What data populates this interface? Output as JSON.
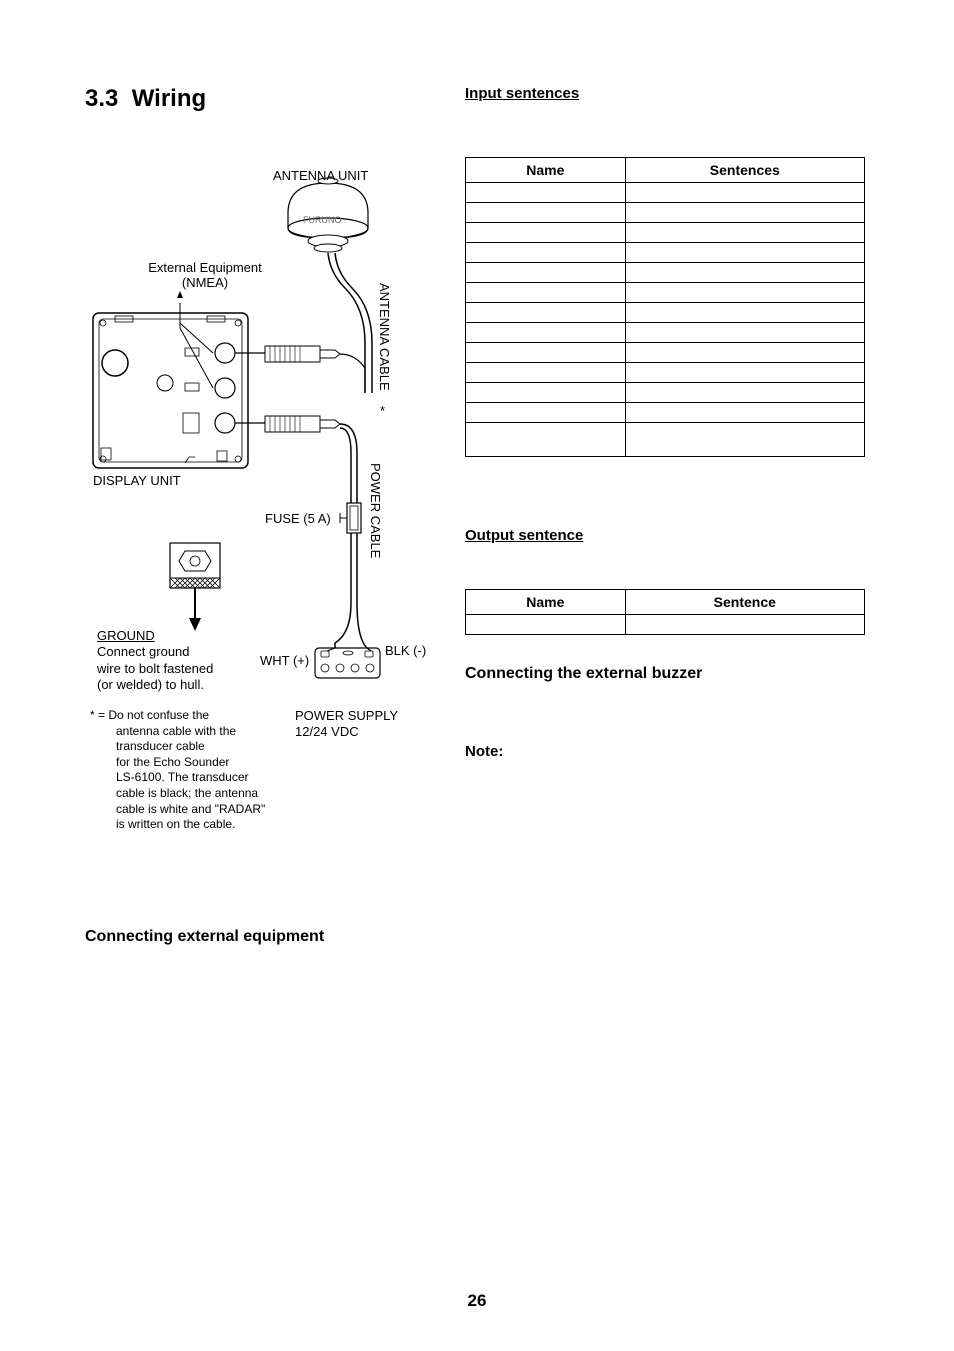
{
  "section_number": "3.3",
  "section_title": "Wiring",
  "diagram": {
    "antenna_unit": "ANTENNA UNIT",
    "antenna_brand": "FURUNO",
    "ext_equip_line1": "External Equipment",
    "ext_equip_line2": "(NMEA)",
    "antenna_cable": "ANTENNA CABLE",
    "antenna_star": "*",
    "display_unit": "DISPLAY UNIT",
    "fuse": "FUSE (5 A)",
    "power_cable": "POWER CABLE",
    "ground_title": "GROUND",
    "ground_line1": "Connect ground",
    "ground_line2": "wire to bolt fastened",
    "ground_line3": "(or welded) to hull.",
    "wht": "WHT (+)",
    "blk": "BLK (-)",
    "power_supply_line1": "POWER SUPPLY",
    "power_supply_line2": "12/24 VDC",
    "footnote_line1": "*  =  Do not confuse the",
    "footnote_line2": "antenna cable with the",
    "footnote_line3": "transducer cable",
    "footnote_line4": "for the Echo Sounder",
    "footnote_line5": "LS-6100. The transducer",
    "footnote_line6": "cable is black; the antenna",
    "footnote_line7": "cable is white and \"RADAR\"",
    "footnote_line8": "is written on the cable."
  },
  "input_sentences_title": "Input sentences",
  "input_table": {
    "col1": "Name",
    "col2": "Sentences",
    "rows": 13
  },
  "output_sentence_title": "Output sentence",
  "output_table": {
    "col1": "Name",
    "col2": "Sentence",
    "rows": 1
  },
  "conn_buzzer_title": "Connecting the external buzzer",
  "note_label": "Note:",
  "conn_ext_title": "Connecting external equipment",
  "page_number": "26",
  "colors": {
    "text": "#000000",
    "border": "#000000",
    "bg": "#ffffff",
    "diagram_stroke": "#000000",
    "diagram_fill": "#ffffff"
  },
  "typography": {
    "section_title_size": 24,
    "body_size": 14,
    "diagram_label_size": 13
  }
}
